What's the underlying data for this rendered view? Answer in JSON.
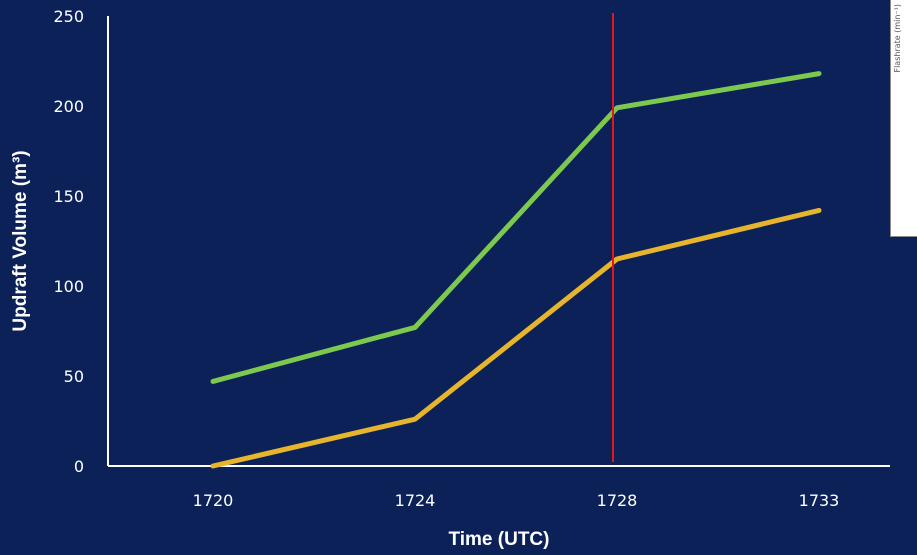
{
  "chart_data": {
    "type": "line",
    "xlabel": "Time (UTC)",
    "ylabel": "Updraft Volume (m³)",
    "categories": [
      "1720",
      "1724",
      "1728",
      "1733"
    ],
    "yticks": [
      "0",
      "50",
      "100",
      "150",
      "200",
      "250"
    ],
    "ylim": [
      0,
      250
    ],
    "series": [
      {
        "values": [
          47,
          77,
          199,
          218
        ],
        "color": "#7dc94f"
      },
      {
        "values": [
          0,
          26,
          115,
          142
        ],
        "color": "#e7b52c"
      }
    ],
    "vertical_marker": {
      "category": "1728",
      "color": "#e8141c"
    },
    "axis_color": "#ffffff",
    "grid": false
  },
  "inset_panel": {
    "label": "Flashrate (min⁻¹)"
  }
}
